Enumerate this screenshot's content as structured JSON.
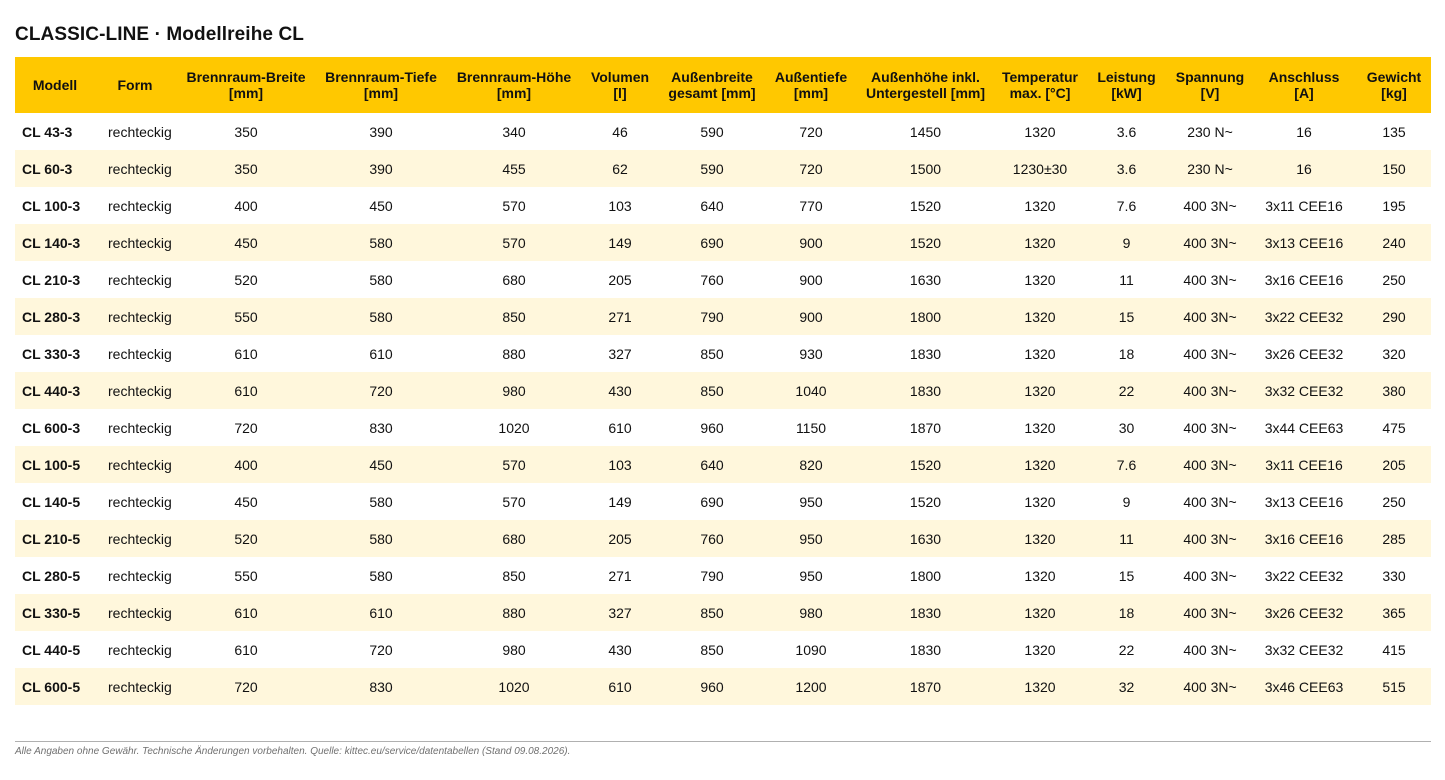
{
  "title": "CLASSIC-LINE · Modellreihe CL",
  "table": {
    "headers": [
      {
        "line1": "Modell",
        "line2": ""
      },
      {
        "line1": "Form",
        "line2": ""
      },
      {
        "line1": "Brennraum-Breite",
        "line2": "[mm]"
      },
      {
        "line1": "Brennraum-Tiefe",
        "line2": "[mm]"
      },
      {
        "line1": "Brennraum-Höhe",
        "line2": "[mm]"
      },
      {
        "line1": "Volumen",
        "line2": "[l]"
      },
      {
        "line1": "Außenbreite",
        "line2": "gesamt [mm]"
      },
      {
        "line1": "Außentiefe",
        "line2": "[mm]"
      },
      {
        "line1": "Außenhöhe inkl.",
        "line2": "Untergestell [mm]"
      },
      {
        "line1": "Temperatur",
        "line2": "max. [°C]"
      },
      {
        "line1": "Leistung",
        "line2": "[kW]"
      },
      {
        "line1": "Spannung",
        "line2": "[V]"
      },
      {
        "line1": "Anschluss",
        "line2": "[A]"
      },
      {
        "line1": "Gewicht",
        "line2": "[kg]"
      }
    ],
    "rows": [
      [
        "CL 43-3",
        "rechteckig",
        "350",
        "390",
        "340",
        "46",
        "590",
        "720",
        "1450",
        "1320",
        "3.6",
        "230 N~",
        "16",
        "135"
      ],
      [
        "CL 60-3",
        "rechteckig",
        "350",
        "390",
        "455",
        "62",
        "590",
        "720",
        "1500",
        "1230±30",
        "3.6",
        "230 N~",
        "16",
        "150"
      ],
      [
        "CL 100-3",
        "rechteckig",
        "400",
        "450",
        "570",
        "103",
        "640",
        "770",
        "1520",
        "1320",
        "7.6",
        "400 3N~",
        "3x11 CEE16",
        "195"
      ],
      [
        "CL 140-3",
        "rechteckig",
        "450",
        "580",
        "570",
        "149",
        "690",
        "900",
        "1520",
        "1320",
        "9",
        "400 3N~",
        "3x13 CEE16",
        "240"
      ],
      [
        "CL 210-3",
        "rechteckig",
        "520",
        "580",
        "680",
        "205",
        "760",
        "900",
        "1630",
        "1320",
        "11",
        "400 3N~",
        "3x16 CEE16",
        "250"
      ],
      [
        "CL 280-3",
        "rechteckig",
        "550",
        "580",
        "850",
        "271",
        "790",
        "900",
        "1800",
        "1320",
        "15",
        "400 3N~",
        "3x22 CEE32",
        "290"
      ],
      [
        "CL 330-3",
        "rechteckig",
        "610",
        "610",
        "880",
        "327",
        "850",
        "930",
        "1830",
        "1320",
        "18",
        "400 3N~",
        "3x26 CEE32",
        "320"
      ],
      [
        "CL 440-3",
        "rechteckig",
        "610",
        "720",
        "980",
        "430",
        "850",
        "1040",
        "1830",
        "1320",
        "22",
        "400 3N~",
        "3x32 CEE32",
        "380"
      ],
      [
        "CL 600-3",
        "rechteckig",
        "720",
        "830",
        "1020",
        "610",
        "960",
        "1150",
        "1870",
        "1320",
        "30",
        "400 3N~",
        "3x44 CEE63",
        "475"
      ],
      [
        "CL 100-5",
        "rechteckig",
        "400",
        "450",
        "570",
        "103",
        "640",
        "820",
        "1520",
        "1320",
        "7.6",
        "400 3N~",
        "3x11 CEE16",
        "205"
      ],
      [
        "CL 140-5",
        "rechteckig",
        "450",
        "580",
        "570",
        "149",
        "690",
        "950",
        "1520",
        "1320",
        "9",
        "400 3N~",
        "3x13 CEE16",
        "250"
      ],
      [
        "CL 210-5",
        "rechteckig",
        "520",
        "580",
        "680",
        "205",
        "760",
        "950",
        "1630",
        "1320",
        "11",
        "400 3N~",
        "3x16 CEE16",
        "285"
      ],
      [
        "CL 280-5",
        "rechteckig",
        "550",
        "580",
        "850",
        "271",
        "790",
        "950",
        "1800",
        "1320",
        "15",
        "400 3N~",
        "3x22 CEE32",
        "330"
      ],
      [
        "CL 330-5",
        "rechteckig",
        "610",
        "610",
        "880",
        "327",
        "850",
        "980",
        "1830",
        "1320",
        "18",
        "400 3N~",
        "3x26 CEE32",
        "365"
      ],
      [
        "CL 440-5",
        "rechteckig",
        "610",
        "720",
        "980",
        "430",
        "850",
        "1090",
        "1830",
        "1320",
        "22",
        "400 3N~",
        "3x32 CEE32",
        "415"
      ],
      [
        "CL 600-5",
        "rechteckig",
        "720",
        "830",
        "1020",
        "610",
        "960",
        "1200",
        "1870",
        "1320",
        "32",
        "400 3N~",
        "3x46 CEE63",
        "515"
      ]
    ]
  },
  "footnote": "Alle Angaben ohne Gewähr. Technische Änderungen vorbehalten. Quelle: kittec.eu/service/datentabellen (Stand 09.08.2026).",
  "colors": {
    "header_bg": "#ffc800",
    "stripe_bg": "#fff7dc"
  }
}
